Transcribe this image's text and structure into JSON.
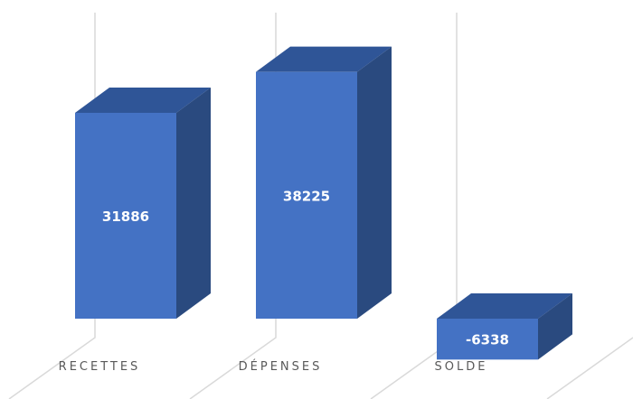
{
  "chart_data": {
    "type": "bar",
    "style": "3d-column",
    "categories": [
      "RECETTES",
      "DÉPENSES",
      "SOLDE"
    ],
    "values": [
      31886,
      38225,
      -6338
    ],
    "title": "",
    "xlabel": "",
    "ylabel": "",
    "ylim": [
      -10000,
      40000
    ],
    "grid": true,
    "legend": "none",
    "colors": {
      "front": "#4472c4",
      "top": "#2f5597",
      "side": "#2a4a7f",
      "grid": "#d9d9d9",
      "label": "#595959",
      "value_text": "#ffffff"
    }
  }
}
